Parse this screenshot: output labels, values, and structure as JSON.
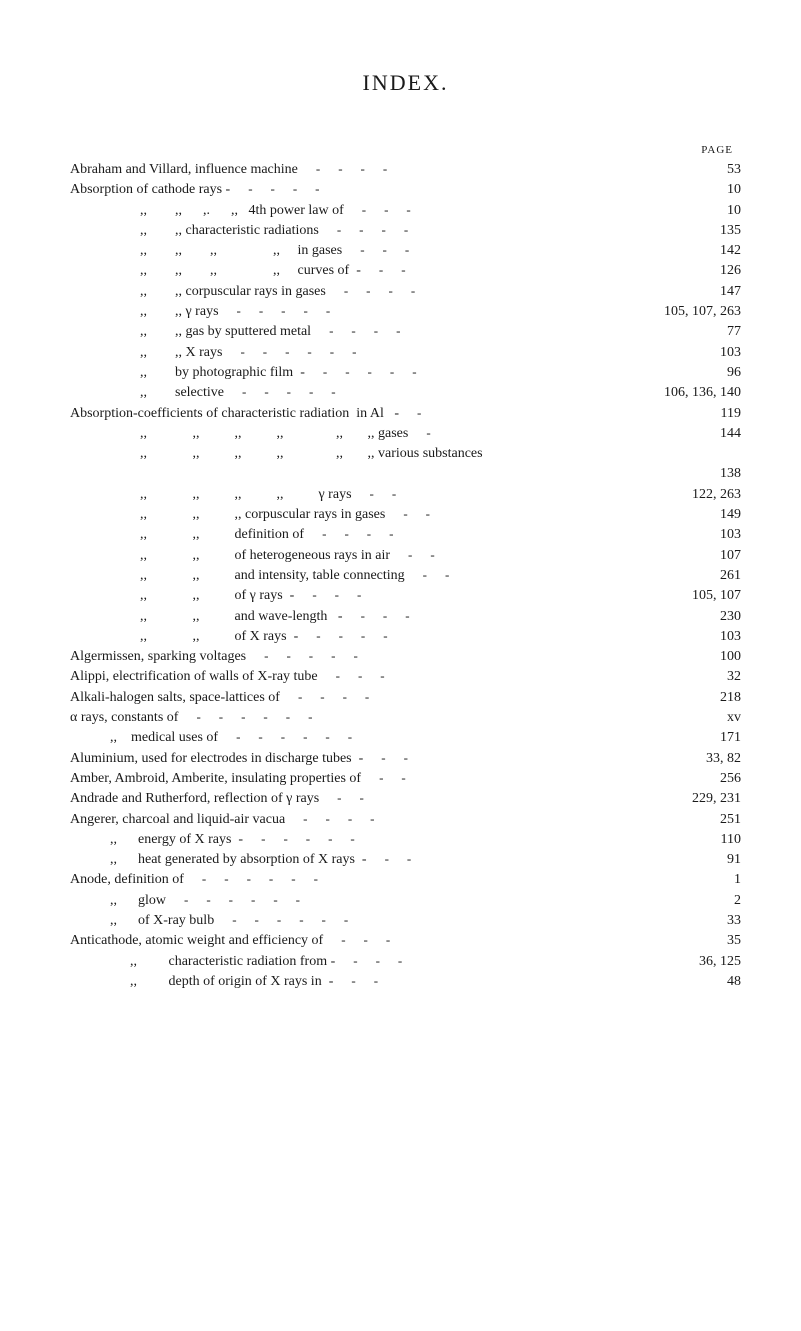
{
  "title": "INDEX.",
  "page_header": "PAGE",
  "entries": [
    {
      "indent": 0,
      "text": "Abraham and Villard, influence machine",
      "page": "53",
      "dashes": 4
    },
    {
      "indent": 0,
      "text": "Absorption of cathode rays -",
      "page": "10",
      "dashes": 4
    },
    {
      "indent": 70,
      "text": ",,        ,,      ,.      ,,   4th power law of",
      "page": "10",
      "dashes": 3
    },
    {
      "indent": 70,
      "text": ",,        ,, characteristic radiations",
      "page": "135",
      "dashes": 4
    },
    {
      "indent": 70,
      "text": ",,        ,,        ,,                ,,     in gases",
      "page": "142",
      "dashes": 3
    },
    {
      "indent": 70,
      "text": ",,        ,,        ,,                ,,     curves of  -",
      "page": "126",
      "dashes": 2
    },
    {
      "indent": 70,
      "text": ",,        ,, corpuscular rays in gases",
      "page": "147",
      "dashes": 4
    },
    {
      "indent": 70,
      "text": ",,        ,, γ rays",
      "page": "105, 107, 263",
      "dashes": 5
    },
    {
      "indent": 70,
      "text": ",,        ,, gas by sputtered metal",
      "page": "77",
      "dashes": 4
    },
    {
      "indent": 70,
      "text": ",,        ,, X rays",
      "page": "103",
      "dashes": 6
    },
    {
      "indent": 70,
      "text": ",,        by photographic film  -",
      "page": "96",
      "dashes": 5
    },
    {
      "indent": 70,
      "text": ",,        selective",
      "page": "106, 136, 140",
      "dashes": 5
    },
    {
      "indent": 0,
      "text": "Absorption-coefficients of characteristic radiation  in Al   -",
      "page": "119",
      "dashes": 1
    },
    {
      "indent": 70,
      "text": ",,             ,,          ,,          ,,               ,,       ,, gases",
      "page": "144",
      "dashes": 1
    },
    {
      "indent": 70,
      "text": ",,             ,,          ,,          ,,               ,,       ,, various substances",
      "page": "",
      "dashes": 0
    },
    {
      "indent": 0,
      "text": "",
      "page": "138",
      "dashes": 0
    },
    {
      "indent": 70,
      "text": ",,             ,,          ,,          ,,          γ rays",
      "page": "122, 263",
      "dashes": 2
    },
    {
      "indent": 70,
      "text": ",,             ,,          ,, corpuscular rays in gases",
      "page": "149",
      "dashes": 2
    },
    {
      "indent": 70,
      "text": ",,             ,,          definition of",
      "page": "103",
      "dashes": 4
    },
    {
      "indent": 70,
      "text": ",,             ,,          of heterogeneous rays in air",
      "page": "107",
      "dashes": 2
    },
    {
      "indent": 70,
      "text": ",,             ,,          and intensity, table connecting",
      "page": "261",
      "dashes": 2
    },
    {
      "indent": 70,
      "text": ",,             ,,          of γ rays  -",
      "page": "105, 107",
      "dashes": 3
    },
    {
      "indent": 70,
      "text": ",,             ,,          and wave-length   -",
      "page": "230",
      "dashes": 3
    },
    {
      "indent": 70,
      "text": ",,             ,,          of X rays  -",
      "page": "103",
      "dashes": 4
    },
    {
      "indent": 0,
      "text": "Algermissen, sparking voltages",
      "page": "100",
      "dashes": 5
    },
    {
      "indent": 0,
      "text": "Alippi, electrification of walls of X-ray tube",
      "page": "32",
      "dashes": 3
    },
    {
      "indent": 0,
      "text": "Alkali-halogen salts, space-lattices of",
      "page": "218",
      "dashes": 4
    },
    {
      "indent": 0,
      "text": "α rays, constants of",
      "page": "xv",
      "dashes": 6
    },
    {
      "indent": 40,
      "text": ",,    medical uses of",
      "page": "171",
      "dashes": 6
    },
    {
      "indent": 0,
      "text": "Aluminium, used for electrodes in discharge tubes  -",
      "page": "33, 82",
      "dashes": 2
    },
    {
      "indent": 0,
      "text": "Amber, Ambroid, Amberite, insulating properties of",
      "page": "256",
      "dashes": 2
    },
    {
      "indent": 0,
      "text": "Andrade and Rutherford, reflection of γ rays",
      "page": "229, 231",
      "dashes": 2
    },
    {
      "indent": 0,
      "text": "Angerer, charcoal and liquid-air vacua",
      "page": "251",
      "dashes": 4
    },
    {
      "indent": 40,
      "text": ",,      energy of X rays  -",
      "page": "110",
      "dashes": 5
    },
    {
      "indent": 40,
      "text": ",,      heat generated by absorption of X rays  -",
      "page": "91",
      "dashes": 2
    },
    {
      "indent": 0,
      "text": "Anode, definition of",
      "page": "1",
      "dashes": 6
    },
    {
      "indent": 40,
      "text": ",,      glow",
      "page": "2",
      "dashes": 6
    },
    {
      "indent": 40,
      "text": ",,      of X-ray bulb",
      "page": "33",
      "dashes": 6
    },
    {
      "indent": 0,
      "text": "Anticathode, atomic weight and efficiency of",
      "page": "35",
      "dashes": 3
    },
    {
      "indent": 60,
      "text": ",,         characteristic radiation from -",
      "page": "36, 125",
      "dashes": 3
    },
    {
      "indent": 60,
      "text": ",,         depth of origin of X rays in  -",
      "page": "48",
      "dashes": 2
    }
  ]
}
